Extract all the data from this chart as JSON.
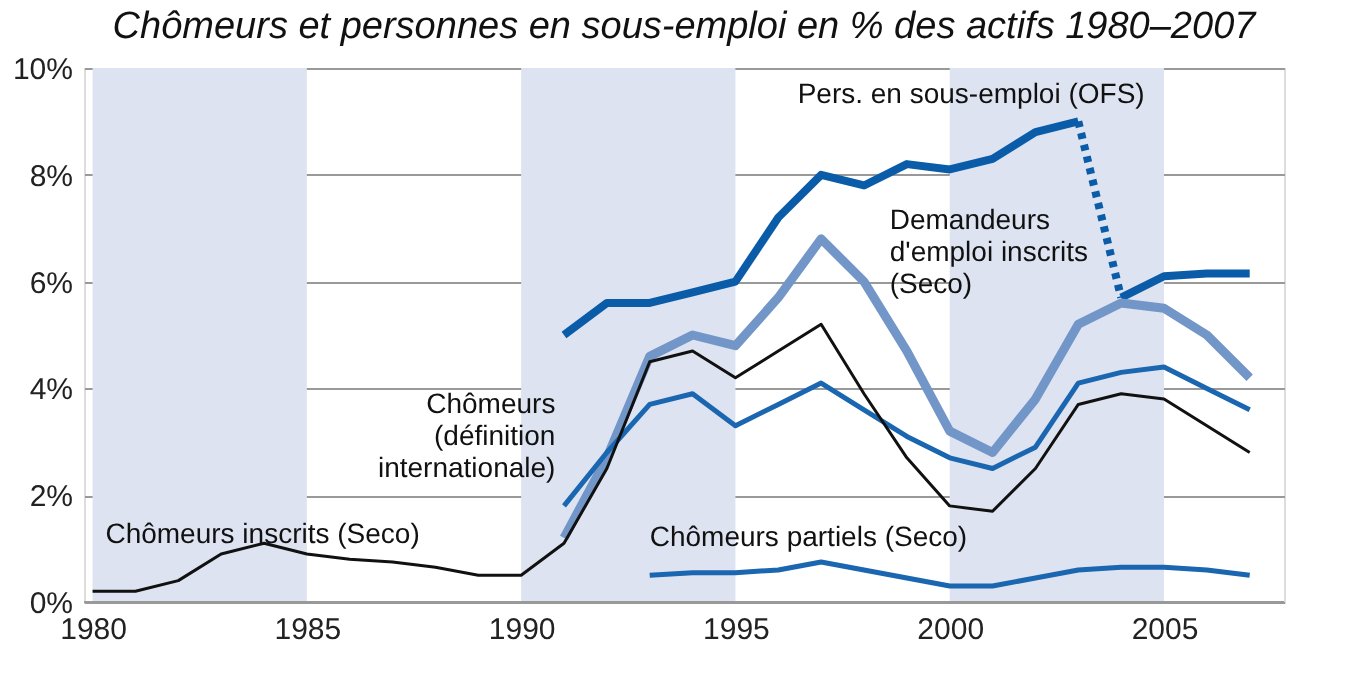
{
  "chart_data": {
    "type": "line",
    "title": "Chômeurs et personnes en sous-emploi en % des actifs 1980–2007",
    "xlim": [
      1979.8,
      2007.8
    ],
    "xticks": [
      1980,
      1985,
      1990,
      1995,
      2000,
      2005
    ],
    "ylim": [
      0,
      10
    ],
    "yticks": [
      {
        "value": 0,
        "label": "0%"
      },
      {
        "value": 2,
        "label": "2%"
      },
      {
        "value": 4,
        "label": "4%"
      },
      {
        "value": 6,
        "label": "6%"
      },
      {
        "value": 8,
        "label": "8%"
      },
      {
        "value": 10,
        "label": "10%"
      }
    ],
    "grid": "y",
    "line_style": "solid",
    "bands": [
      {
        "axis": "x",
        "from": 1980,
        "to": 1985,
        "color": "#dde3f0"
      },
      {
        "axis": "x",
        "from": 1990,
        "to": 1995,
        "color": "#dde3f0"
      },
      {
        "axis": "x",
        "from": 2000,
        "to": 2005,
        "color": "#dde3f0"
      }
    ],
    "series": [
      {
        "name": "Pers. en sous-emploi (OFS)",
        "color": "#0a5ca8",
        "x": [
          1991,
          1992,
          1993,
          1994,
          1995,
          1996,
          1997,
          1998,
          1999,
          2000,
          2001,
          2002,
          2003
        ],
        "values": [
          5.0,
          5.6,
          5.6,
          5.8,
          6.0,
          7.2,
          8.0,
          7.8,
          8.2,
          8.1,
          8.3,
          8.8,
          9.0
        ]
      },
      {
        "color": "#0a5ca8",
        "line_style": "dotted",
        "x": [
          2003,
          2004
        ],
        "values": [
          9.0,
          5.7
        ]
      },
      {
        "color": "#0a5ca8",
        "x": [
          2004,
          2005,
          2006,
          2007
        ],
        "values": [
          5.7,
          6.1,
          6.15,
          6.15
        ]
      },
      {
        "name": "Demandeurs d'emploi inscrits (Seco)",
        "color": "#7396c8",
        "x": [
          1991,
          1992,
          1993,
          1994,
          1995,
          1996,
          1997,
          1998,
          1999,
          2000,
          2001,
          2002,
          2003,
          2004,
          2005,
          2006,
          2007
        ],
        "values": [
          1.2,
          2.7,
          4.6,
          5.0,
          4.8,
          5.7,
          6.8,
          6.0,
          4.7,
          3.2,
          2.8,
          3.8,
          5.2,
          5.6,
          5.5,
          5.0,
          4.2
        ]
      },
      {
        "name": "Chômeurs (définition internationale)",
        "color": "#1a66b0",
        "x": [
          1991,
          1992,
          1993,
          1994,
          1995,
          1996,
          1997,
          1998,
          1999,
          2000,
          2001,
          2002,
          2003,
          2004,
          2005,
          2006,
          2007
        ],
        "values": [
          1.8,
          2.8,
          3.7,
          3.9,
          3.3,
          3.7,
          4.1,
          3.6,
          3.1,
          2.7,
          2.5,
          2.9,
          4.1,
          4.3,
          4.4,
          4.0,
          3.6
        ]
      },
      {
        "name": "Chômeurs inscrits (Seco)",
        "color": "#111111",
        "x": [
          1980,
          1981,
          1982,
          1983,
          1984,
          1985,
          1986,
          1987,
          1988,
          1989,
          1990,
          1991,
          1992,
          1993,
          1994,
          1995,
          1996,
          1997,
          1998,
          1999,
          2000,
          2001,
          2002,
          2003,
          2004,
          2005,
          2006,
          2007
        ],
        "values": [
          0.2,
          0.2,
          0.4,
          0.9,
          1.1,
          0.9,
          0.8,
          0.75,
          0.65,
          0.5,
          0.5,
          1.1,
          2.5,
          4.5,
          4.7,
          4.2,
          4.7,
          5.2,
          3.9,
          2.7,
          1.8,
          1.7,
          2.5,
          3.7,
          3.9,
          3.8,
          3.3,
          2.8
        ]
      },
      {
        "name": "Chômeurs partiels (Seco)",
        "color": "#1a66b0",
        "x": [
          1993,
          1994,
          1995,
          1996,
          1997,
          1998,
          1999,
          2000,
          2001,
          2002,
          2003,
          2004,
          2005,
          2006,
          2007
        ],
        "values": [
          0.5,
          0.55,
          0.55,
          0.6,
          0.75,
          0.6,
          0.45,
          0.3,
          0.3,
          0.45,
          0.6,
          0.65,
          0.65,
          0.6,
          0.5
        ]
      }
    ]
  }
}
